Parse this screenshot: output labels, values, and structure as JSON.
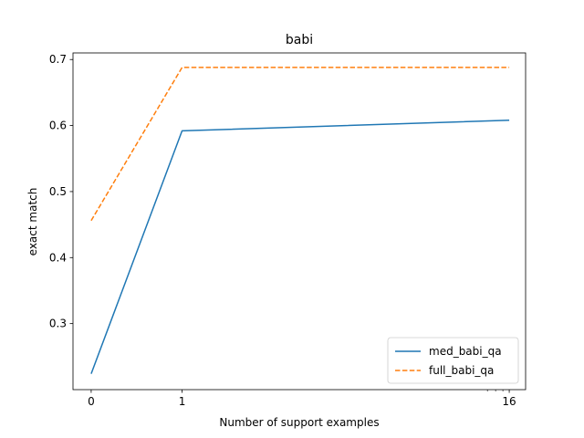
{
  "chart_data": {
    "type": "line",
    "title": "babi",
    "xlabel": "Number of support examples",
    "ylabel": "exact match",
    "x_positions": [
      0,
      1,
      4.6
    ],
    "x_tick_labels": [
      "0",
      "1",
      "16"
    ],
    "xlim": [
      -0.2,
      4.78
    ],
    "ylim": [
      0.2,
      0.71
    ],
    "y_ticks": [
      0.3,
      0.4,
      0.5,
      0.6,
      0.7
    ],
    "y_tick_labels": [
      "0.3",
      "0.4",
      "0.5",
      "0.6",
      "0.7"
    ],
    "series": [
      {
        "name": "med_babi_qa",
        "color": "#1f77b4",
        "dash": "solid",
        "values": [
          0.224,
          0.592,
          0.608
        ]
      },
      {
        "name": "full_babi_qa",
        "color": "#ff7f0e",
        "dash": "dashed",
        "values": [
          0.456,
          0.688,
          0.688
        ]
      }
    ],
    "legend_position": "lower-right",
    "grid": false
  }
}
